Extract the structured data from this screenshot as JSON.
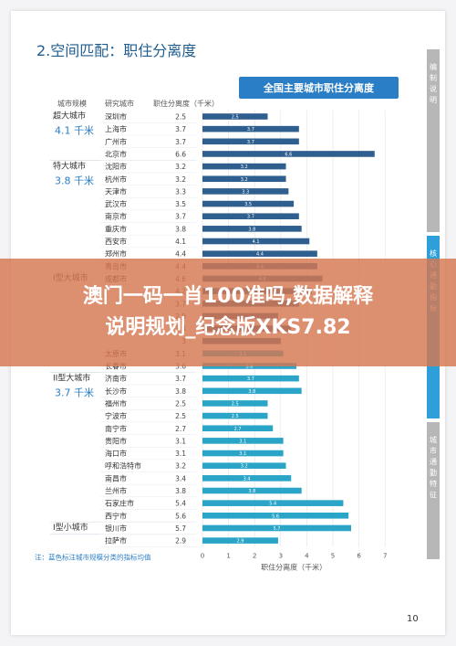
{
  "section_title": "2.空间匹配：职住分离度",
  "chart_title": "全国主要城市职住分离度",
  "page_number": "10",
  "side_tabs": [
    "编制说明",
    "核心通勤指标",
    "城市通勤特征"
  ],
  "overlay_title": "澳门一码一肖100准吗,数据解释说明规划_纪念版XKS7.82",
  "colors": {
    "dark_bar": "#2f5f8f",
    "light_bar": "#2aa5c7",
    "group_text": "#2a7ec6"
  },
  "chart_data": {
    "type": "bar",
    "orientation": "horizontal",
    "headers": {
      "group": "城市规模",
      "city": "研究城市",
      "value": "职住分离度（千米）"
    },
    "xlabel": "职住分离度（千米）",
    "xlim": [
      0,
      7
    ],
    "xticks": [
      "0",
      "1",
      "2",
      "3",
      "4",
      "5",
      "6",
      "7"
    ],
    "footnote": "注：蓝色标注城市规模分类的指标均值",
    "groups": [
      {
        "name": "超大城市",
        "mean": "4.1 千米",
        "rows": [
          0,
          3
        ]
      },
      {
        "name": "特大城市",
        "mean": "3.8 千米",
        "rows": [
          4,
          12
        ]
      },
      {
        "name": "I型大城市",
        "mean": "",
        "rows": [
          13,
          20
        ]
      },
      {
        "name": "II型大城市",
        "mean": "3.7 千米",
        "rows": [
          21,
          32
        ]
      },
      {
        "name": "I型小城市",
        "mean": "",
        "rows": [
          33,
          33
        ]
      }
    ],
    "cities": [
      "深圳市",
      "上海市",
      "广州市",
      "北京市",
      "沈阳市",
      "杭州市",
      "天津市",
      "武汉市",
      "南京市",
      "重庆市",
      "西安市",
      "郑州市",
      "青岛市",
      "成都市",
      "",
      "",
      "",
      "",
      "",
      "太原市",
      "长春市",
      "济南市",
      "长沙市",
      "福州市",
      "宁波市",
      "南宁市",
      "贵阳市",
      "海口市",
      "呼和浩特市",
      "南昌市",
      "兰州市",
      "石家庄市",
      "西宁市",
      "银川市",
      "拉萨市"
    ],
    "values": [
      2.5,
      3.7,
      3.7,
      6.6,
      3.2,
      3.2,
      3.3,
      3.5,
      3.7,
      3.8,
      4.1,
      4.4,
      4.4,
      4.6,
      4.2,
      3.7,
      2.9,
      3.4,
      3.0,
      3.1,
      3.6,
      3.7,
      3.8,
      2.5,
      2.5,
      2.7,
      3.1,
      3.1,
      3.2,
      3.4,
      3.8,
      5.4,
      5.6,
      5.7,
      2.9
    ],
    "value_labels": [
      "2.5",
      "3.7",
      "3.7",
      "6.6",
      "3.2",
      "3.2",
      "3.3",
      "3.5",
      "3.7",
      "3.8",
      "4.1",
      "4.4",
      "4.4",
      "4.6",
      "",
      "",
      "",
      "",
      "",
      "3.1",
      "3.6",
      "3.7",
      "3.8",
      "2.5",
      "2.5",
      "2.7",
      "3.1",
      "3.1",
      "3.2",
      "3.4",
      "3.8",
      "5.4",
      "5.6",
      "5.7",
      "2.9"
    ],
    "bar_colors": [
      "dark",
      "dark",
      "dark",
      "dark",
      "dark",
      "dark",
      "dark",
      "dark",
      "dark",
      "dark",
      "dark",
      "dark",
      "dark",
      "dark",
      "dark",
      "dark",
      "dark",
      "dark",
      "dark",
      "light",
      "light",
      "light",
      "light",
      "light",
      "light",
      "light",
      "light",
      "light",
      "light",
      "light",
      "light",
      "light",
      "light",
      "light",
      "light"
    ]
  }
}
